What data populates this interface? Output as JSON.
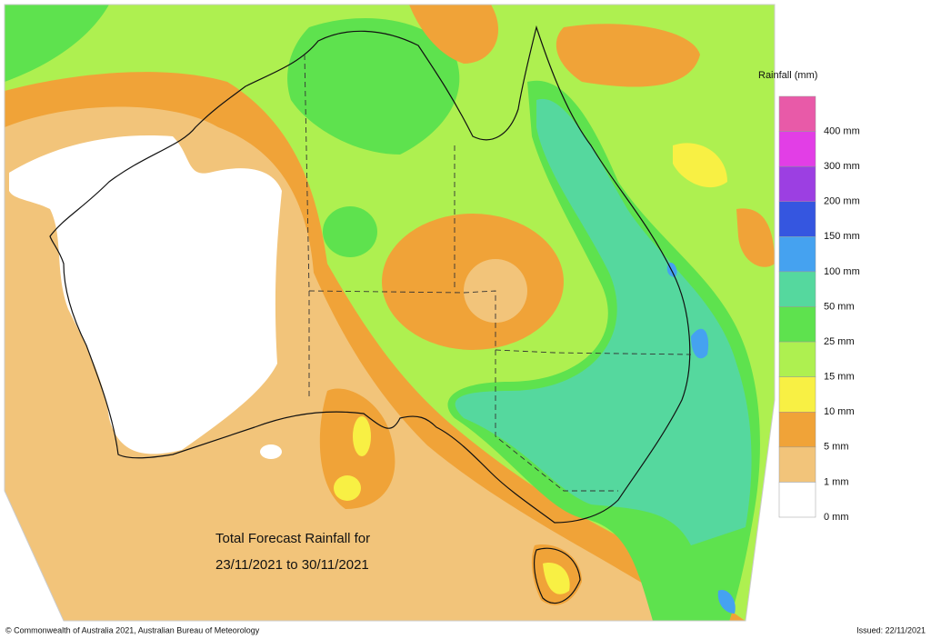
{
  "legend": {
    "title": "Rainfall (mm)",
    "items": [
      {
        "label": "400 mm",
        "color": "#e85aa8"
      },
      {
        "label": "300 mm",
        "color": "#e23ee6"
      },
      {
        "label": "200 mm",
        "color": "#9c3fe2"
      },
      {
        "label": "150 mm",
        "color": "#3556e0"
      },
      {
        "label": "100 mm",
        "color": "#45a2f0"
      },
      {
        "label": "50 mm",
        "color": "#55d89e"
      },
      {
        "label": "25 mm",
        "color": "#5ee24e"
      },
      {
        "label": "15 mm",
        "color": "#aef050"
      },
      {
        "label": "10 mm",
        "color": "#f8f044"
      },
      {
        "label": "5 mm",
        "color": "#f0a338"
      },
      {
        "label": "1 mm",
        "color": "#f2c47a"
      },
      {
        "label": "0 mm",
        "color": "#ffffff"
      }
    ]
  },
  "map": {
    "caption": [
      "Total Forecast Rainfall for",
      "23/11/2021 to 30/11/2021"
    ]
  },
  "footer": {
    "copyright": "© Commonwealth of Australia 2021, Australian Bureau of Meteorology",
    "issued": "Issued: 22/11/2021"
  }
}
